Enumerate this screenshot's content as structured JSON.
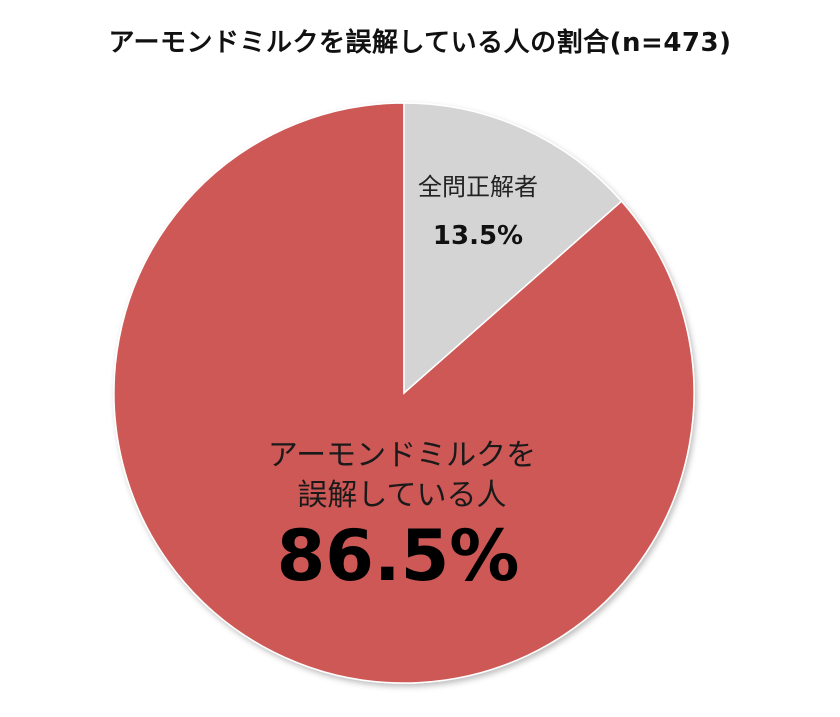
{
  "chart_data": {
    "type": "pie",
    "title": "アーモンドミルクを誤解している人の割合(n=473)",
    "slices": [
      {
        "label": "全問正解者",
        "value": 13.5,
        "value_label": "13.5%",
        "color": "#d4d4d4"
      },
      {
        "label_lines": [
          "アーモンドミルクを",
          "誤解している人"
        ],
        "value": 86.5,
        "value_label": "86.5%",
        "color": "#cd5955"
      }
    ],
    "start_angle": "12 o'clock",
    "direction": "clockwise"
  }
}
